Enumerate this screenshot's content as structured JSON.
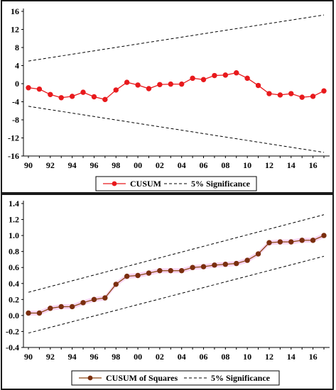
{
  "chart_data": [
    {
      "type": "line",
      "x": [
        "1990",
        "1991",
        "1992",
        "1993",
        "1994",
        "1995",
        "1996",
        "1997",
        "1998",
        "1999",
        "2000",
        "2001",
        "2002",
        "2003",
        "2004",
        "2005",
        "2006",
        "2007",
        "2008",
        "2009",
        "2010",
        "2011",
        "2012",
        "2013",
        "2014",
        "2015",
        "2016",
        "2017"
      ],
      "xticks": [
        "90",
        "92",
        "94",
        "96",
        "98",
        "00",
        "02",
        "04",
        "06",
        "08",
        "10",
        "12",
        "14",
        "16"
      ],
      "yticks": [
        "-16",
        "-12",
        "-8",
        "-4",
        "0",
        "4",
        "8",
        "12",
        "16"
      ],
      "ylim": [
        -16,
        16
      ],
      "series": [
        {
          "name": "CUSUM",
          "color": "#e8191c",
          "marker": "circle",
          "values": [
            -0.9,
            -1.2,
            -2.4,
            -3.1,
            -2.8,
            -1.9,
            -2.9,
            -3.5,
            -1.4,
            0.3,
            -0.3,
            -1.1,
            -0.2,
            -0.1,
            -0.1,
            1.2,
            0.9,
            1.8,
            1.9,
            2.4,
            1.2,
            -0.4,
            -2.2,
            -2.5,
            -2.2,
            -3.0,
            -2.8,
            -1.6
          ]
        },
        {
          "name": "5% Significance",
          "color": "#000000",
          "style": "dashed",
          "upper": [
            5.0,
            15.2
          ],
          "lower": [
            -5.0,
            -15.2
          ]
        }
      ],
      "legend_position": "bottom-center",
      "grid": false
    },
    {
      "type": "line",
      "x": [
        "1990",
        "1991",
        "1992",
        "1993",
        "1994",
        "1995",
        "1996",
        "1997",
        "1998",
        "1999",
        "2000",
        "2001",
        "2002",
        "2003",
        "2004",
        "2005",
        "2006",
        "2007",
        "2008",
        "2009",
        "2010",
        "2011",
        "2012",
        "2013",
        "2014",
        "2015",
        "2016",
        "2017"
      ],
      "xticks": [
        "90",
        "92",
        "94",
        "96",
        "98",
        "00",
        "02",
        "04",
        "06",
        "08",
        "10",
        "12",
        "14",
        "16"
      ],
      "yticks": [
        "-0.4",
        "-0.2",
        "0.0",
        "0.2",
        "0.4",
        "0.6",
        "0.8",
        "1.0",
        "1.2",
        "1.4"
      ],
      "ylim": [
        -0.4,
        1.4
      ],
      "series": [
        {
          "name": "CUSUM of Squares",
          "color": "#8b4513",
          "marker_color": "#7a2e0e",
          "marker": "circle",
          "values": [
            0.03,
            0.03,
            0.09,
            0.11,
            0.11,
            0.16,
            0.2,
            0.22,
            0.39,
            0.49,
            0.5,
            0.53,
            0.56,
            0.56,
            0.56,
            0.6,
            0.61,
            0.63,
            0.64,
            0.65,
            0.69,
            0.77,
            0.91,
            0.92,
            0.92,
            0.94,
            0.94,
            1.0
          ]
        },
        {
          "name": "5% Significance",
          "color": "#000000",
          "style": "dashed",
          "upper": [
            0.29,
            1.26
          ],
          "lower": [
            -0.22,
            0.74
          ]
        }
      ],
      "legend_position": "bottom-center",
      "grid": false
    }
  ]
}
